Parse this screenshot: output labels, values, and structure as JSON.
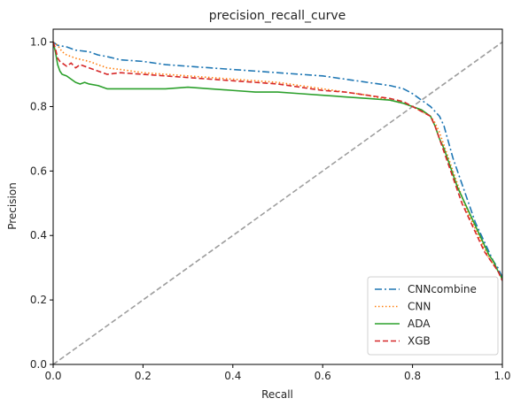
{
  "chart_data": {
    "type": "line",
    "title": "precision_recall_curve",
    "xlabel": "Recall",
    "ylabel": "Precision",
    "xlim": [
      0,
      1
    ],
    "ylim": [
      0,
      1.04
    ],
    "xticks": [
      0.0,
      0.2,
      0.4,
      0.6,
      0.8,
      1.0
    ],
    "xtick_labels": [
      "0.0",
      "0.2",
      "0.4",
      "0.6",
      "0.8",
      "1.0"
    ],
    "yticks": [
      0.0,
      0.2,
      0.4,
      0.6,
      0.8,
      1.0
    ],
    "ytick_labels": [
      "0.0",
      "0.2",
      "0.4",
      "0.6",
      "0.8",
      "1.0"
    ],
    "grid": false,
    "legend_position": "lower-right",
    "diagonal": {
      "x": [
        0,
        1
      ],
      "y": [
        0,
        1
      ],
      "color": "#9e9e9e",
      "style": "dashed"
    },
    "series": [
      {
        "name": "CNNcombine",
        "color": "#1f77b4",
        "style": "dashdot",
        "x": [
          0.0,
          0.01,
          0.03,
          0.05,
          0.08,
          0.1,
          0.12,
          0.15,
          0.2,
          0.25,
          0.3,
          0.35,
          0.4,
          0.45,
          0.5,
          0.55,
          0.6,
          0.65,
          0.7,
          0.75,
          0.78,
          0.8,
          0.82,
          0.84,
          0.86,
          0.87,
          0.88,
          0.89,
          0.9,
          0.91,
          0.92,
          0.93,
          0.94,
          0.95,
          0.96,
          0.97,
          0.98,
          0.99,
          1.0
        ],
        "y": [
          1.0,
          0.99,
          0.985,
          0.975,
          0.97,
          0.96,
          0.955,
          0.945,
          0.94,
          0.93,
          0.925,
          0.92,
          0.915,
          0.91,
          0.905,
          0.9,
          0.895,
          0.885,
          0.875,
          0.865,
          0.855,
          0.84,
          0.82,
          0.8,
          0.77,
          0.74,
          0.69,
          0.64,
          0.6,
          0.56,
          0.52,
          0.48,
          0.44,
          0.41,
          0.38,
          0.35,
          0.32,
          0.3,
          0.27
        ]
      },
      {
        "name": "CNN",
        "color": "#ff7f0e",
        "style": "dotted",
        "x": [
          0.0,
          0.01,
          0.02,
          0.03,
          0.05,
          0.08,
          0.1,
          0.12,
          0.15,
          0.2,
          0.25,
          0.3,
          0.35,
          0.4,
          0.45,
          0.5,
          0.55,
          0.6,
          0.65,
          0.7,
          0.75,
          0.78,
          0.8,
          0.82,
          0.84,
          0.85,
          0.86,
          0.87,
          0.88,
          0.89,
          0.9,
          0.91,
          0.92,
          0.93,
          0.94,
          0.95,
          0.96,
          0.97,
          0.98,
          0.99,
          1.0
        ],
        "y": [
          1.0,
          0.99,
          0.97,
          0.96,
          0.95,
          0.94,
          0.93,
          0.92,
          0.915,
          0.905,
          0.9,
          0.895,
          0.89,
          0.885,
          0.88,
          0.875,
          0.865,
          0.855,
          0.845,
          0.835,
          0.82,
          0.81,
          0.8,
          0.785,
          0.77,
          0.75,
          0.72,
          0.68,
          0.64,
          0.6,
          0.56,
          0.52,
          0.48,
          0.45,
          0.42,
          0.39,
          0.36,
          0.33,
          0.31,
          0.29,
          0.265
        ]
      },
      {
        "name": "ADA",
        "color": "#2ca02c",
        "style": "solid",
        "x": [
          0.0,
          0.005,
          0.01,
          0.015,
          0.02,
          0.03,
          0.04,
          0.05,
          0.06,
          0.07,
          0.08,
          0.1,
          0.12,
          0.15,
          0.2,
          0.25,
          0.3,
          0.35,
          0.4,
          0.45,
          0.5,
          0.55,
          0.6,
          0.65,
          0.7,
          0.75,
          0.78,
          0.8,
          0.82,
          0.84,
          0.85,
          0.86,
          0.87,
          0.88,
          0.89,
          0.9,
          0.91,
          0.92,
          0.93,
          0.94,
          0.95,
          0.96,
          0.97,
          0.98,
          0.99,
          1.0
        ],
        "y": [
          1.0,
          0.97,
          0.93,
          0.91,
          0.9,
          0.895,
          0.885,
          0.875,
          0.87,
          0.875,
          0.87,
          0.865,
          0.855,
          0.855,
          0.855,
          0.855,
          0.86,
          0.855,
          0.85,
          0.845,
          0.845,
          0.84,
          0.835,
          0.83,
          0.825,
          0.82,
          0.81,
          0.8,
          0.79,
          0.77,
          0.74,
          0.7,
          0.67,
          0.63,
          0.59,
          0.55,
          0.52,
          0.49,
          0.46,
          0.43,
          0.4,
          0.37,
          0.34,
          0.32,
          0.29,
          0.265
        ]
      },
      {
        "name": "XGB",
        "color": "#d62728",
        "style": "dashed",
        "x": [
          0.0,
          0.005,
          0.01,
          0.015,
          0.02,
          0.03,
          0.04,
          0.05,
          0.06,
          0.08,
          0.1,
          0.12,
          0.15,
          0.2,
          0.25,
          0.3,
          0.35,
          0.4,
          0.45,
          0.5,
          0.55,
          0.6,
          0.65,
          0.7,
          0.75,
          0.78,
          0.8,
          0.82,
          0.84,
          0.85,
          0.86,
          0.87,
          0.88,
          0.89,
          0.9,
          0.91,
          0.92,
          0.93,
          0.94,
          0.95,
          0.96,
          0.97,
          0.98,
          0.99,
          1.0
        ],
        "y": [
          1.0,
          0.98,
          0.95,
          0.94,
          0.935,
          0.925,
          0.935,
          0.92,
          0.93,
          0.92,
          0.91,
          0.9,
          0.905,
          0.9,
          0.895,
          0.89,
          0.885,
          0.88,
          0.875,
          0.87,
          0.86,
          0.85,
          0.845,
          0.835,
          0.825,
          0.815,
          0.8,
          0.785,
          0.77,
          0.74,
          0.7,
          0.66,
          0.62,
          0.58,
          0.54,
          0.5,
          0.47,
          0.44,
          0.41,
          0.38,
          0.35,
          0.33,
          0.31,
          0.29,
          0.26
        ]
      }
    ]
  }
}
